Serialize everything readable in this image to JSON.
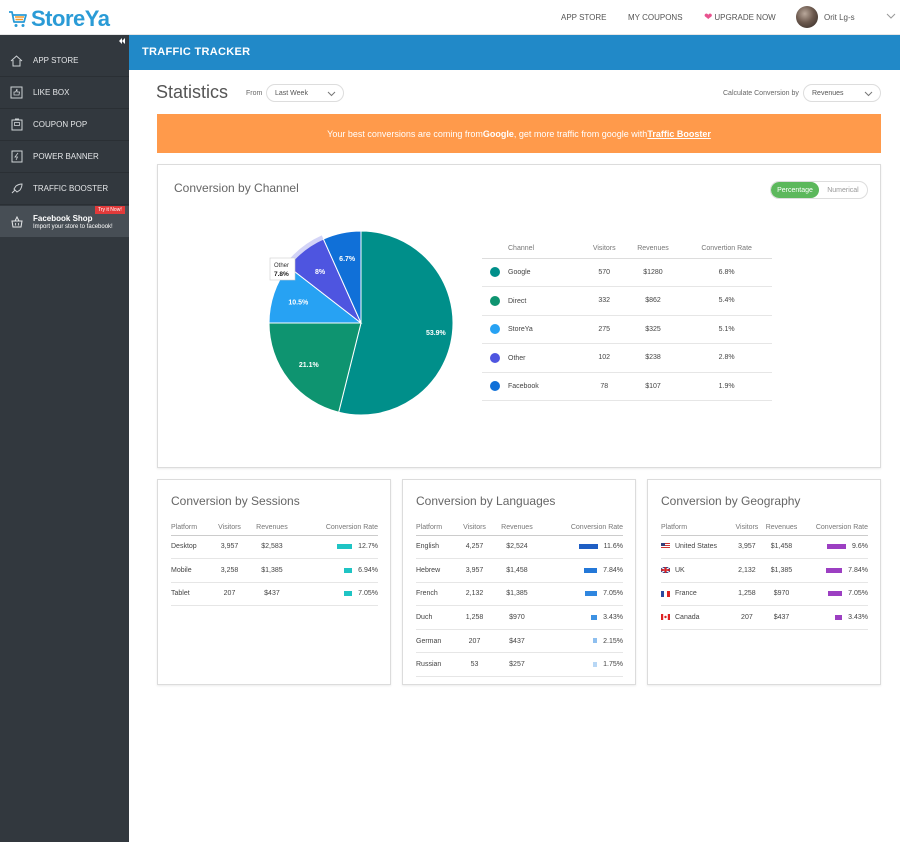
{
  "brand": {
    "name": "StoreYa"
  },
  "topnav": {
    "app_store": "APP STORE",
    "my_coupons": "MY COUPONS",
    "upgrade": "UPGRADE NOW"
  },
  "user": {
    "name": "Orit Lg-s"
  },
  "sidebar": {
    "items": [
      {
        "label": "APP STORE",
        "icon": "house-icon"
      },
      {
        "label": "LIKE BOX",
        "icon": "likebox-icon"
      },
      {
        "label": "COUPON POP",
        "icon": "coupon-icon"
      },
      {
        "label": "POWER BANNER",
        "icon": "banner-icon"
      },
      {
        "label": "TRAFFIC BOOSTER",
        "icon": "rocket-icon"
      }
    ],
    "facebook": {
      "title": "Facebook Shop",
      "subtitle": "Import your store to facebook!",
      "badge": "Try it Now!"
    }
  },
  "header": {
    "title": "TRAFFIC TRACKER"
  },
  "stats": {
    "title": "Statistics",
    "from_label": "From",
    "period": "Last Week",
    "calc_label": "Calculate Conversion by",
    "calc_value": "Revenues"
  },
  "banner": {
    "pre": "Your best conversions are coming from ",
    "source": "Google",
    "mid": ", get more traffic from google with ",
    "link": "Traffic Booster"
  },
  "channel": {
    "title": "Conversion by Channel",
    "toggle": {
      "on": "Percentage",
      "off": "Numerical"
    },
    "columns": [
      "Channel",
      "Visitors",
      "Revenues",
      "Convertion Rate"
    ],
    "rows": [
      {
        "name": "Google",
        "visitors": "570",
        "revenues": "$1280",
        "rate": "6.8%",
        "color": "#008f8a"
      },
      {
        "name": "Direct",
        "visitors": "332",
        "revenues": "$862",
        "rate": "5.4%",
        "color": "#0e9470"
      },
      {
        "name": "StoreYa",
        "visitors": "275",
        "revenues": "$325",
        "rate": "5.1%",
        "color": "#27a2f3"
      },
      {
        "name": "Other",
        "visitors": "102",
        "revenues": "$238",
        "rate": "2.8%",
        "color": "#4e55e0"
      },
      {
        "name": "Facebook",
        "visitors": "78",
        "revenues": "$107",
        "rate": "1.9%",
        "color": "#1070d8"
      }
    ],
    "tooltip": {
      "name": "Other",
      "value": "7.8%"
    }
  },
  "chart_data": {
    "type": "pie",
    "categories": [
      "Google",
      "Direct",
      "StoreYa",
      "Other",
      "Facebook"
    ],
    "values": [
      53.9,
      21.1,
      10.5,
      7.8,
      6.7
    ],
    "labels": [
      "53.9%",
      "21.1%",
      "10.5%",
      "8%",
      "6.7%"
    ],
    "colors": [
      "#008f8a",
      "#0e9470",
      "#27a2f3",
      "#4e55e0",
      "#1070d8"
    ]
  },
  "sessions": {
    "title": "Conversion by Sessions",
    "columns": [
      "Platform",
      "Visitors",
      "Revenues",
      "Conversion Rate"
    ],
    "rows": [
      {
        "name": "Desktop",
        "visitors": "3,957",
        "revenues": "$2,583",
        "rate": "12.7%",
        "pct": 12.7
      },
      {
        "name": "Mobile",
        "visitors": "3,258",
        "revenues": "$1,385",
        "rate": "6.94%",
        "pct": 6.94
      },
      {
        "name": "Tablet",
        "visitors": "207",
        "revenues": "$437",
        "rate": "7.05%",
        "pct": 7.05
      }
    ],
    "bar_color": "#1fc4c4"
  },
  "languages": {
    "title": "Conversion by Languages",
    "columns": [
      "Platform",
      "Visitors",
      "Revenues",
      "Conversion Rate"
    ],
    "rows": [
      {
        "name": "English",
        "visitors": "4,257",
        "revenues": "$2,524",
        "rate": "11.6%",
        "pct": 11.6,
        "color": "#1f5fc4"
      },
      {
        "name": "Hebrew",
        "visitors": "3,957",
        "revenues": "$1,458",
        "rate": "7.84%",
        "pct": 7.84,
        "color": "#2478d8"
      },
      {
        "name": "French",
        "visitors": "2,132",
        "revenues": "$1,385",
        "rate": "7.05%",
        "pct": 7.05,
        "color": "#2f86df"
      },
      {
        "name": "Duch",
        "visitors": "1,258",
        "revenues": "$970",
        "rate": "3.43%",
        "pct": 3.43,
        "color": "#3d92e3"
      },
      {
        "name": "German",
        "visitors": "207",
        "revenues": "$437",
        "rate": "2.15%",
        "pct": 2.15,
        "color": "#8ebfef"
      },
      {
        "name": "Russian",
        "visitors": "53",
        "revenues": "$257",
        "rate": "1.75%",
        "pct": 1.75,
        "color": "#b8d7f5"
      }
    ]
  },
  "geography": {
    "title": "Conversion by Geography",
    "columns": [
      "Platform",
      "Visitors",
      "Revenues",
      "Conversion Rate"
    ],
    "rows": [
      {
        "name": "United States",
        "visitors": "3,957",
        "revenues": "$1,458",
        "rate": "9.6%",
        "pct": 9.6,
        "flag": "us-flag-icon"
      },
      {
        "name": "UK",
        "visitors": "2,132",
        "revenues": "$1,385",
        "rate": "7.84%",
        "pct": 7.84,
        "flag": "uk-flag-icon"
      },
      {
        "name": "France",
        "visitors": "1,258",
        "revenues": "$970",
        "rate": "7.05%",
        "pct": 7.05,
        "flag": "fr-flag-icon"
      },
      {
        "name": "Canada",
        "visitors": "207",
        "revenues": "$437",
        "rate": "3.43%",
        "pct": 3.43,
        "flag": "ca-flag-icon"
      }
    ],
    "bar_color": "#9c3fc2"
  }
}
